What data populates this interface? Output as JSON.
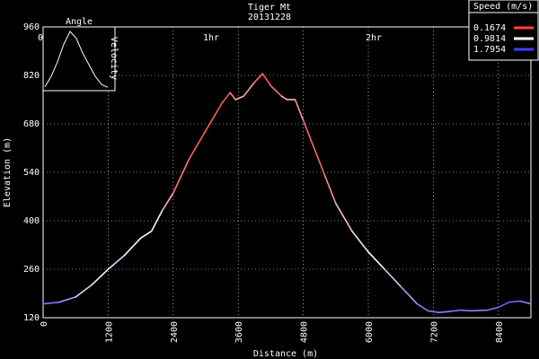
{
  "chart_data": {
    "type": "line",
    "title": "Tiger Mt",
    "subtitle": "20131228",
    "xlabel": "Distance (m)",
    "ylabel": "Elevation (m)",
    "xlim": [
      0,
      9000
    ],
    "ylim": [
      120,
      960
    ],
    "xticks": [
      "0",
      "1200",
      "2400",
      "3600",
      "4800",
      "6000",
      "7200",
      "8400"
    ],
    "yticks": [
      "120",
      "260",
      "400",
      "540",
      "680",
      "820",
      "960"
    ],
    "time_marks": [
      {
        "label": "0h",
        "x": 0
      },
      {
        "label": "1hr",
        "x": 3100
      },
      {
        "label": "2hr",
        "x": 6100
      }
    ],
    "grid": true,
    "legend": {
      "title": "Speed (m/s)",
      "placement": "top-right",
      "entries": [
        {
          "label": "0.1674",
          "color": "#ff4040"
        },
        {
          "label": "0.9814",
          "color": "#ffffff"
        },
        {
          "label": "1.7954",
          "color": "#4040ff"
        }
      ]
    },
    "inset": {
      "title": "Angle",
      "ylabel": "Velocity",
      "x": [
        0,
        1,
        2,
        3,
        4,
        5,
        6,
        7,
        8,
        9,
        10
      ],
      "y": [
        0.02,
        0.2,
        0.45,
        0.75,
        0.97,
        0.85,
        0.6,
        0.4,
        0.2,
        0.06,
        0.01
      ]
    },
    "series": [
      {
        "x": [
          0,
          300,
          600,
          900,
          1200,
          1500,
          1800,
          2000,
          2200,
          2400,
          2700,
          3000,
          3300,
          3450,
          3550,
          3700,
          3900,
          4050,
          4200,
          4400,
          4500,
          4650,
          4800,
          5000,
          5200,
          5400,
          5700,
          6000,
          6300,
          6600,
          6900,
          7100,
          7300,
          7500,
          7700,
          7900,
          8200,
          8400,
          8600,
          8800,
          9000
        ],
        "y": [
          160,
          165,
          180,
          215,
          260,
          300,
          350,
          370,
          430,
          480,
          580,
          660,
          740,
          770,
          750,
          760,
          800,
          825,
          790,
          760,
          750,
          750,
          690,
          610,
          530,
          450,
          370,
          310,
          260,
          210,
          160,
          140,
          135,
          138,
          142,
          140,
          142,
          150,
          165,
          168,
          160
        ],
        "speed": [
          1.6,
          1.5,
          1.3,
          1.0,
          1.1,
          1.1,
          0.9,
          1.0,
          0.8,
          0.5,
          0.3,
          0.3,
          0.25,
          0.3,
          0.6,
          0.7,
          0.4,
          0.3,
          0.3,
          0.5,
          0.8,
          0.7,
          0.4,
          0.3,
          0.4,
          0.6,
          0.8,
          0.9,
          1.1,
          1.3,
          1.5,
          1.6,
          1.5,
          1.5,
          1.6,
          1.5,
          1.5,
          1.6,
          1.7,
          1.5,
          1.5
        ]
      }
    ]
  }
}
